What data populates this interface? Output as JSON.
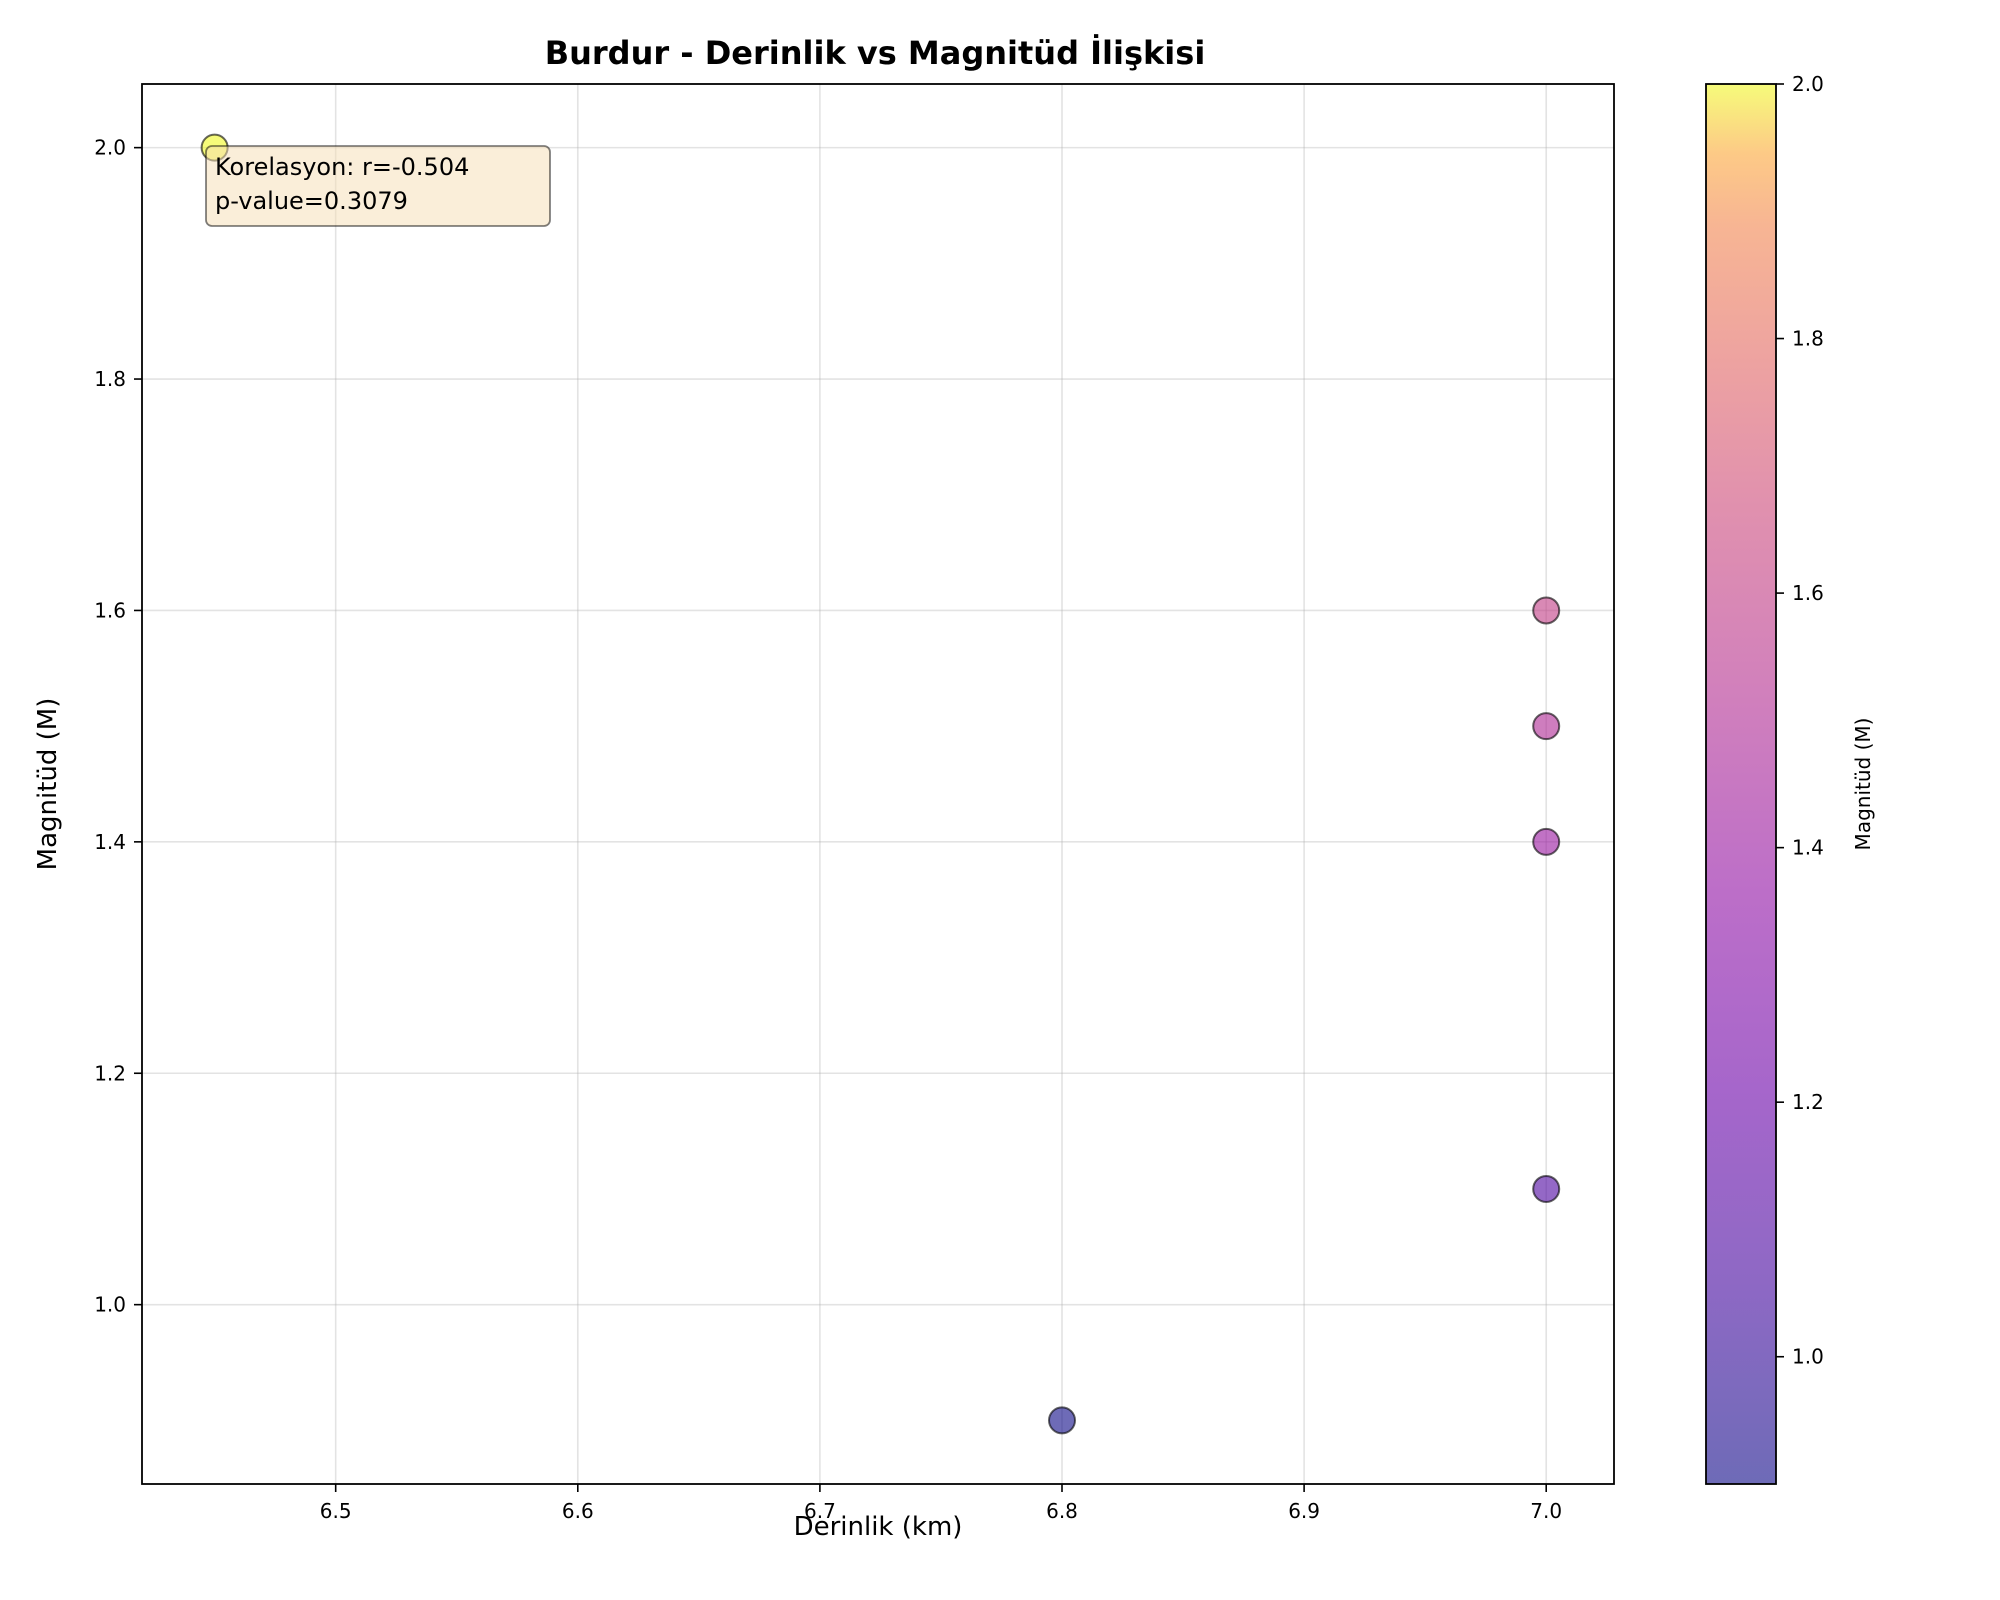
{
  "chart_data": {
    "type": "scatter",
    "title": "Burdur - Derinlik vs Magnitüd İlişkisi",
    "xlabel": "Derinlik (km)",
    "ylabel": "Magnitüd (M)",
    "xlim": [
      6.42,
      7.028
    ],
    "ylim": [
      0.845,
      2.055
    ],
    "xticks": [
      6.5,
      6.6,
      6.7,
      6.8,
      6.9,
      7.0
    ],
    "yticks": [
      1.0,
      1.2,
      1.4,
      1.6,
      1.8,
      2.0
    ],
    "grid": true,
    "points": [
      {
        "x": 6.45,
        "y": 2.0
      },
      {
        "x": 7.0,
        "y": 1.6
      },
      {
        "x": 7.0,
        "y": 1.5
      },
      {
        "x": 7.0,
        "y": 1.4
      },
      {
        "x": 7.0,
        "y": 1.1
      },
      {
        "x": 6.8,
        "y": 0.9
      }
    ],
    "colormap": "plasma",
    "colorbar": {
      "label": "Magnitüd (M)",
      "range": [
        0.9,
        2.0
      ],
      "ticks": [
        1.0,
        1.2,
        1.4,
        1.6,
        1.8,
        2.0
      ]
    },
    "annotation": {
      "lines": [
        "Korelasyon: r=-0.504",
        "p-value=0.3079"
      ],
      "placement": "top-left"
    }
  }
}
